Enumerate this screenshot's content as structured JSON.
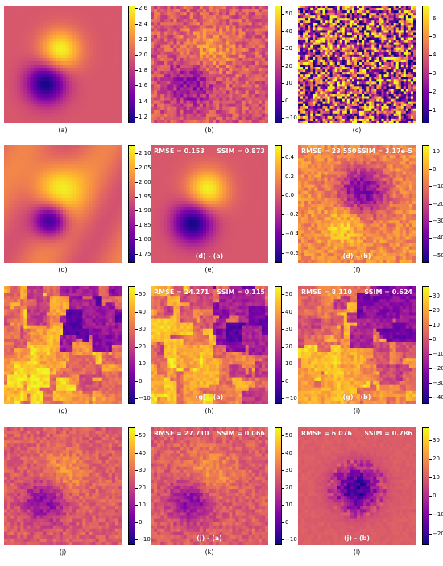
{
  "colormap": "plasma",
  "colors": {
    "plasma_low": "#0d0887",
    "plasma_mid": "#cc4778",
    "plasma_high": "#f0f921",
    "base": "#d35f7a"
  },
  "panels": [
    {
      "id": "a",
      "caption": "(a)",
      "pattern": "blob-smooth",
      "ticks": [
        "2.6",
        "2.4",
        "2.2",
        "2.0",
        "1.8",
        "1.6",
        "1.4",
        "1.2"
      ],
      "tick_values": [
        2.6,
        2.4,
        2.2,
        2.0,
        1.8,
        1.6,
        1.4,
        1.2
      ],
      "vmin": 1.12,
      "vmax": 2.64
    },
    {
      "id": "b",
      "caption": "(b)",
      "pattern": "blob-noisy",
      "ticks": [
        "50",
        "40",
        "30",
        "20",
        "10",
        "0",
        "−10"
      ],
      "tick_values": [
        50,
        40,
        30,
        20,
        10,
        0,
        -10
      ],
      "vmin": -13,
      "vmax": 55
    },
    {
      "id": "c",
      "caption": "(c)",
      "pattern": "pure-noise",
      "ticks": [
        "6",
        "5",
        "4",
        "3",
        "2",
        "1"
      ],
      "tick_values": [
        6,
        5,
        4,
        3,
        2,
        1
      ],
      "vmin": 0.3,
      "vmax": 6.7
    },
    {
      "id": "d",
      "caption": "(d)",
      "pattern": "blob-blurred",
      "ticks": [
        "2.10",
        "2.05",
        "2.00",
        "1.95",
        "1.90",
        "1.85",
        "1.80",
        "1.75"
      ],
      "tick_values": [
        2.1,
        2.05,
        2.0,
        1.95,
        1.9,
        1.85,
        1.8,
        1.75
      ],
      "vmin": 1.72,
      "vmax": 2.13
    },
    {
      "id": "e",
      "caption": "(e)",
      "pattern": "blob-smooth",
      "overlay": "(d) - (a)",
      "rmse": "RMSE = 0.153",
      "ssim": "SSIM = 0.873",
      "ticks": [
        "0.4",
        "0.2",
        "0.0",
        "−0.2",
        "−0.4",
        "−0.6"
      ],
      "tick_values": [
        0.4,
        0.2,
        0.0,
        -0.2,
        -0.4,
        -0.6
      ],
      "vmin": -0.7,
      "vmax": 0.53
    },
    {
      "id": "f",
      "caption": "(f)",
      "pattern": "blob-inverted",
      "overlay": "(d) - (b)",
      "rmse": "RMSE = 23.550",
      "ssim": "SSIM = 3.17e-5",
      "ticks": [
        "10",
        "0",
        "−10",
        "−20",
        "−30",
        "−40",
        "−50"
      ],
      "tick_values": [
        10,
        0,
        -10,
        -20,
        -30,
        -40,
        -50
      ],
      "vmin": -54,
      "vmax": 14
    },
    {
      "id": "g",
      "caption": "(g)",
      "pattern": "patches-bright",
      "ticks": [
        "50",
        "40",
        "30",
        "20",
        "10",
        "0",
        "−10"
      ],
      "tick_values": [
        50,
        40,
        30,
        20,
        10,
        0,
        -10
      ],
      "vmin": -13,
      "vmax": 55
    },
    {
      "id": "h",
      "caption": "(h)",
      "pattern": "patches-bright",
      "overlay": "(g) - (a)",
      "rmse": "RMSE = 24.271",
      "ssim": "SSIM = 0.115",
      "ticks": [
        "50",
        "40",
        "30",
        "20",
        "10",
        "0",
        "−10"
      ],
      "tick_values": [
        50,
        40,
        30,
        20,
        10,
        0,
        -10
      ],
      "vmin": -13,
      "vmax": 55
    },
    {
      "id": "i",
      "caption": "(i)",
      "pattern": "patches-mid",
      "overlay": "(g) - (b)",
      "rmse": "RMSE = 8.110",
      "ssim": "SSIM = 0.624",
      "ticks": [
        "30",
        "20",
        "10",
        "0",
        "−10",
        "−20",
        "−30",
        "−40"
      ],
      "tick_values": [
        30,
        20,
        10,
        0,
        -10,
        -20,
        -30,
        -40
      ],
      "vmin": -44,
      "vmax": 37
    },
    {
      "id": "j",
      "caption": "(j)",
      "pattern": "blob-patchy",
      "ticks": [
        "50",
        "40",
        "30",
        "20",
        "10",
        "0",
        "−10"
      ],
      "tick_values": [
        50,
        40,
        30,
        20,
        10,
        0,
        -10
      ],
      "vmin": -13,
      "vmax": 55
    },
    {
      "id": "k",
      "caption": "(k)",
      "pattern": "blob-patchy",
      "overlay": "(j) - (a)",
      "rmse": "RMSE = 27.710",
      "ssim": "SSIM = 0.066",
      "ticks": [
        "50",
        "40",
        "30",
        "20",
        "10",
        "0",
        "−10"
      ],
      "tick_values": [
        50,
        40,
        30,
        20,
        10,
        0,
        -10
      ],
      "vmin": -13,
      "vmax": 55
    },
    {
      "id": "l",
      "caption": "(l)",
      "pattern": "center-dark",
      "overlay": "(j) - (b)",
      "rmse": "RMSE = 6.076",
      "ssim": "SSIM = 0.786",
      "ticks": [
        "30",
        "20",
        "10",
        "0",
        "−10",
        "−20"
      ],
      "tick_values": [
        30,
        20,
        10,
        0,
        -10,
        -20
      ],
      "vmin": -26,
      "vmax": 37
    }
  ],
  "chart_data": [
    {
      "type": "heatmap",
      "panel": "a",
      "title": "",
      "colorbar_range": [
        1.12,
        2.64
      ],
      "colorbar_ticks": [
        1.2,
        1.4,
        1.6,
        1.8,
        2.0,
        2.2,
        2.4,
        2.6
      ]
    },
    {
      "type": "heatmap",
      "panel": "b",
      "title": "",
      "colorbar_range": [
        -13,
        55
      ],
      "colorbar_ticks": [
        -10,
        0,
        10,
        20,
        30,
        40,
        50
      ]
    },
    {
      "type": "heatmap",
      "panel": "c",
      "title": "",
      "colorbar_range": [
        0.3,
        6.7
      ],
      "colorbar_ticks": [
        1,
        2,
        3,
        4,
        5,
        6
      ]
    },
    {
      "type": "heatmap",
      "panel": "d",
      "title": "",
      "colorbar_range": [
        1.72,
        2.13
      ],
      "colorbar_ticks": [
        1.75,
        1.8,
        1.85,
        1.9,
        1.95,
        2.0,
        2.05,
        2.1
      ]
    },
    {
      "type": "heatmap",
      "panel": "e",
      "title": "",
      "annotation": "(d) - (a)",
      "RMSE": 0.153,
      "SSIM": 0.873,
      "colorbar_range": [
        -0.7,
        0.53
      ],
      "colorbar_ticks": [
        -0.6,
        -0.4,
        -0.2,
        0.0,
        0.2,
        0.4
      ]
    },
    {
      "type": "heatmap",
      "panel": "f",
      "title": "",
      "annotation": "(d) - (b)",
      "RMSE": 23.55,
      "SSIM": 3.17e-05,
      "colorbar_range": [
        -54,
        14
      ],
      "colorbar_ticks": [
        -50,
        -40,
        -30,
        -20,
        -10,
        0,
        10
      ]
    },
    {
      "type": "heatmap",
      "panel": "g",
      "title": "",
      "colorbar_range": [
        -13,
        55
      ],
      "colorbar_ticks": [
        -10,
        0,
        10,
        20,
        30,
        40,
        50
      ]
    },
    {
      "type": "heatmap",
      "panel": "h",
      "title": "",
      "annotation": "(g) - (a)",
      "RMSE": 24.271,
      "SSIM": 0.115,
      "colorbar_range": [
        -13,
        55
      ],
      "colorbar_ticks": [
        -10,
        0,
        10,
        20,
        30,
        40,
        50
      ]
    },
    {
      "type": "heatmap",
      "panel": "i",
      "title": "",
      "annotation": "(g) - (b)",
      "RMSE": 8.11,
      "SSIM": 0.624,
      "colorbar_range": [
        -44,
        37
      ],
      "colorbar_ticks": [
        -40,
        -30,
        -20,
        -10,
        0,
        10,
        20,
        30
      ]
    },
    {
      "type": "heatmap",
      "panel": "j",
      "title": "",
      "colorbar_range": [
        -13,
        55
      ],
      "colorbar_ticks": [
        -10,
        0,
        10,
        20,
        30,
        40,
        50
      ]
    },
    {
      "type": "heatmap",
      "panel": "k",
      "title": "",
      "annotation": "(j) - (a)",
      "RMSE": 27.71,
      "SSIM": 0.066,
      "colorbar_range": [
        -13,
        55
      ],
      "colorbar_ticks": [
        -10,
        0,
        10,
        20,
        30,
        40,
        50
      ]
    },
    {
      "type": "heatmap",
      "panel": "l",
      "title": "",
      "annotation": "(j) - (b)",
      "RMSE": 6.076,
      "SSIM": 0.786,
      "colorbar_range": [
        -26,
        37
      ],
      "colorbar_ticks": [
        -20,
        -10,
        0,
        10,
        20,
        30
      ]
    }
  ]
}
